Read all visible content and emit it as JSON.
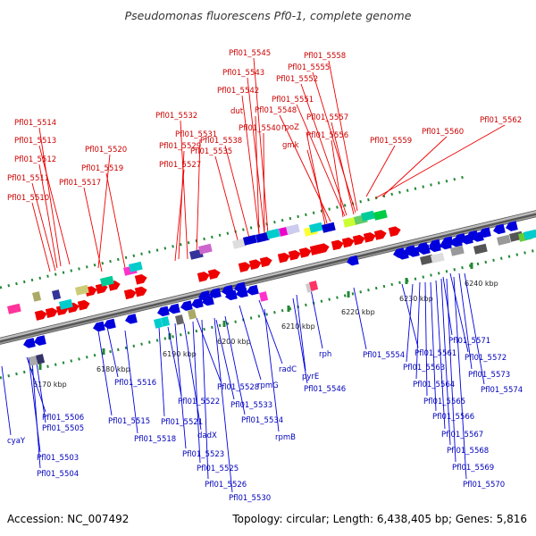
{
  "title": "Pseudomonas fluorescens Pf0-1, complete genome",
  "accession_text": "Accession: NC_007492",
  "stats_text": "Topology: circular; Length: 6,438,405 bp; Genes: 5,816",
  "colors": {
    "forward": "#ee0000",
    "reverse": "#0000dd",
    "ruler": "#228833",
    "backbone": "#888888"
  },
  "ruler_ticks": [
    "6170 kbp",
    "6180 kbp",
    "6190 kbp",
    "6200 kbp",
    "6210 kbp",
    "6220 kbp",
    "6230 kbp",
    "6240 kbp"
  ],
  "forward_labels": [
    "Pfl01_5545",
    "Pfl01_5558",
    "Pfl01_5543",
    "Pfl01_5555",
    "Pfl01_5552",
    "Pfl01_5542",
    "Pfl01_5551",
    "dut",
    "Pfl01_5548",
    "Pfl01_5532",
    "Pfl01_5557",
    "Pfl01_5562",
    "Pfl01_5514",
    "Pfl01_5540",
    "rpoZ",
    "Pfl01_5531",
    "Pfl01_5538",
    "Pfl01_5556",
    "Pfl01_5560",
    "Pfl01_5513",
    "Pfl01_5529",
    "gmk",
    "Pfl01_5559",
    "Pfl01_5520",
    "Pfl01_5535",
    "Pfl01_5512",
    "Pfl01_5527",
    "Pfl01_5519",
    "Pfl01_5511",
    "Pfl01_5517",
    "Pfl01_5510"
  ],
  "reverse_labels": [
    "Pfl01_5554",
    "rph",
    "Pfl01_5571",
    "Pfl01_5561",
    "Pfl01_5572",
    "radC",
    "Pfl01_5563",
    "pyrE",
    "Pfl01_5573",
    "Pfl01_5516",
    "rpmG",
    "Pfl01_5528",
    "Pfl01_5564",
    "Pfl01_5546",
    "Pfl01_5574",
    "Pfl01_5522",
    "Pfl01_5565",
    "Pfl01_5506",
    "Pfl01_5515",
    "Pfl01_5533",
    "Pfl01_5521",
    "Pfl01_5534",
    "Pfl01_5566",
    "Pfl01_5505",
    "rpmB",
    "dadX",
    "Pfl01_5518",
    "Pfl01_5567",
    "cyaY",
    "Pfl01_5523",
    "Pfl01_5503",
    "Pfl01_5568",
    "Pfl01_5525",
    "Pfl01_5504",
    "Pfl01_5569",
    "Pfl01_5526",
    "Pfl01_5570",
    "Pfl01_5530"
  ]
}
